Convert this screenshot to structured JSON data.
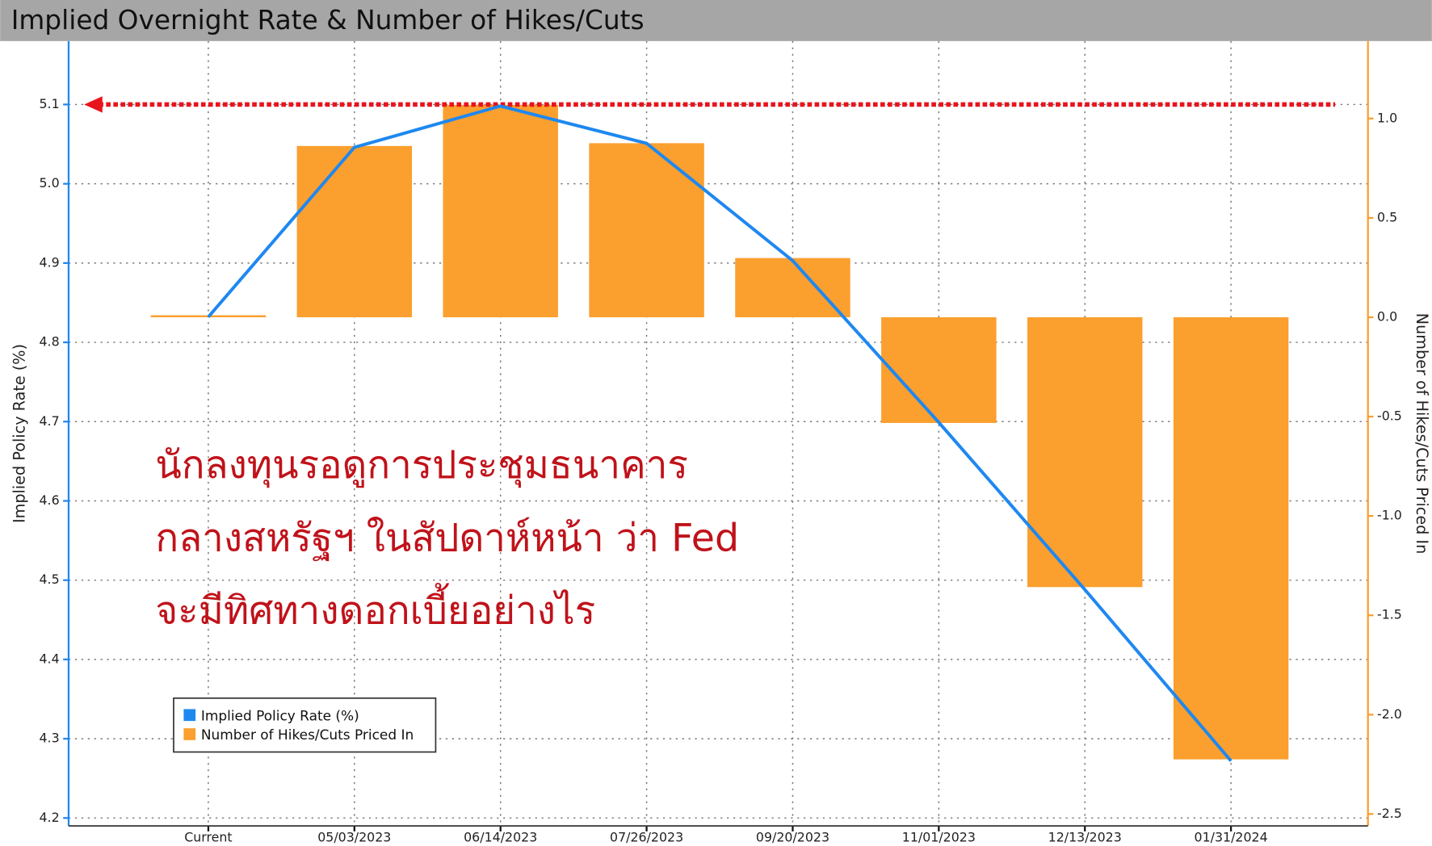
{
  "chart_data": {
    "type": "bar_line",
    "title": "Implied Overnight Rate & Number of Hikes/Cuts",
    "ylabel": "Implied Policy Rate (%)",
    "y2label": "Number of Hikes/Cuts Priced In",
    "categories": [
      "Current",
      "05/03/2023",
      "06/14/2023",
      "07/26/2023",
      "09/20/2023",
      "11/01/2023",
      "12/13/2023",
      "01/31/2024"
    ],
    "series": [
      {
        "name": "Implied Policy Rate (%)",
        "type": "line",
        "color": "#1e88f0",
        "values": [
          4.832,
          5.046,
          5.098,
          5.051,
          4.903,
          4.699,
          4.488,
          4.272
        ]
      },
      {
        "name": "Number of Hikes/Cuts Priced In",
        "type": "bar",
        "axis": "y2",
        "color": "#fb9f2e",
        "values": [
          0.01,
          0.862,
          1.069,
          0.876,
          0.298,
          -0.532,
          -1.358,
          -2.225
        ]
      }
    ],
    "ylim": [
      4.19,
      5.18
    ],
    "yticks": [
      4.2,
      4.3,
      4.4,
      4.5,
      4.6,
      4.7,
      4.8,
      4.9,
      {
        "value": 5,
        "label": "5.0"
      },
      5.1
    ],
    "y2lim": [
      -2.56,
      1.39
    ],
    "y2ticks": [
      -2.5,
      {
        "value": -2,
        "label": "-2.0"
      },
      -1.5,
      {
        "value": -1,
        "label": "-1.0"
      },
      -0.5,
      {
        "value": 0,
        "label": "0.0"
      },
      0.5,
      {
        "value": 1,
        "label": "1.0"
      }
    ],
    "reference_line": {
      "value": 5.1,
      "color": "#e8141c"
    },
    "annotation": [
      "นักลงทุนรอดูการประชุมธนาคาร",
      "กลางสหรัฐฯ ในสัปดาห์หน้า ว่า Fed",
      "จะมีทิศทางดอกเบี้ยอย่างไร"
    ],
    "annotation_color": "#c0121a",
    "grid": true,
    "legend": "lower-left"
  }
}
